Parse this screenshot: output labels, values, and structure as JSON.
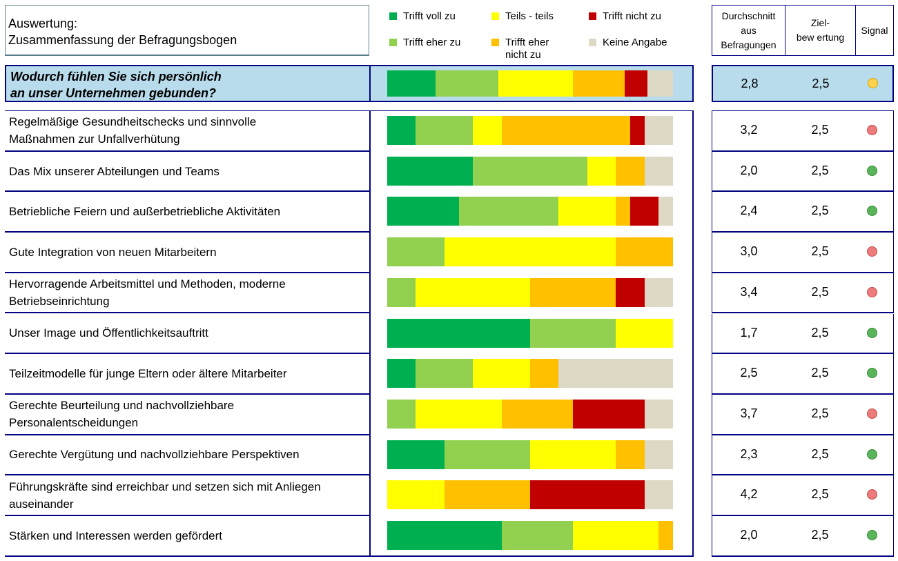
{
  "title": {
    "line1": "Auswertung:",
    "line2": "Zusammenfassung der Befragungsbogen"
  },
  "legend": [
    {
      "label": "Trifft voll zu",
      "color": "#00b050"
    },
    {
      "label": "Teils - teils",
      "color": "#ffff00"
    },
    {
      "label": "Trifft nicht zu",
      "color": "#c00000"
    },
    {
      "label": "Trifft eher zu",
      "color": "#92d050"
    },
    {
      "label": "Trifft eher\nnicht zu",
      "color": "#ffc000"
    },
    {
      "label": "Keine Angabe",
      "color": "#ddd9c4"
    }
  ],
  "columns": {
    "avg": "Durchschnitt aus Befragungen",
    "target": "Ziel-\nbew ertung",
    "signal": "Signal"
  },
  "question": {
    "line1": "Wodurch fühlen Sie sich persönlich",
    "line2": "an unser Unternehmen gebunden?",
    "avg": "2,8",
    "target": "2,5",
    "signal": "yellow"
  },
  "signal_colors": {
    "green": "#5ab55a",
    "red": "#ee7b7b",
    "yellow": "#ffd34d"
  },
  "chart_data": {
    "type": "bar",
    "stacked": true,
    "orientation": "horizontal",
    "unit": "percent",
    "series_order": [
      "Trifft voll zu",
      "Trifft eher zu",
      "Teils - teils",
      "Trifft eher nicht zu",
      "Trifft nicht zu",
      "Keine Angabe"
    ],
    "series_colors": [
      "#00b050",
      "#92d050",
      "#ffff00",
      "#ffc000",
      "#c00000",
      "#ddd9c4"
    ],
    "total": [
      17,
      22,
      26,
      18,
      8,
      9
    ],
    "categories": [
      "Regelmäßige Gesundheitschecks und sinnvolle\nMaßnahmen zur Unfallverhütung",
      "Das Mix unserer Abteilungen und Teams",
      "Betriebliche Feiern und außerbetriebliche Aktivitäten",
      "Gute Integration von neuen Mitarbeitern",
      "Hervorragende Arbeitsmittel und Methoden, moderne\nBetriebseinrichtung",
      "Unser Image und Öffentlichkeitsauftritt",
      "Teilzeitmodelle für junge Eltern oder ältere Mitarbeiter",
      "Gerechte Beurteilung und nachvollziehbare\nPersonalentscheidungen",
      "Gerechte Vergütung und nachvollziehbare Perspektiven",
      "Führungskräfte sind erreichbar und setzen sich mit Anliegen\nauseinander",
      "Stärken und Interessen werden gefördert"
    ],
    "values": [
      [
        10,
        20,
        10,
        45,
        5,
        10
      ],
      [
        30,
        40,
        10,
        10,
        0,
        10
      ],
      [
        25,
        35,
        20,
        5,
        10,
        5
      ],
      [
        0,
        20,
        60,
        20,
        0,
        0
      ],
      [
        0,
        10,
        40,
        30,
        10,
        10
      ],
      [
        50,
        30,
        20,
        0,
        0,
        0
      ],
      [
        10,
        20,
        20,
        10,
        0,
        40
      ],
      [
        0,
        10,
        30,
        25,
        25,
        10
      ],
      [
        20,
        30,
        30,
        10,
        0,
        10
      ],
      [
        0,
        0,
        20,
        30,
        40,
        10
      ],
      [
        40,
        25,
        30,
        5,
        0,
        0
      ]
    ],
    "avg": [
      "3,2",
      "2,0",
      "2,4",
      "3,0",
      "3,4",
      "1,7",
      "2,5",
      "3,7",
      "2,3",
      "4,2",
      "2,0"
    ],
    "target": [
      "2,5",
      "2,5",
      "2,5",
      "2,5",
      "2,5",
      "2,5",
      "2,5",
      "2,5",
      "2,5",
      "2,5",
      "2,5"
    ],
    "signal": [
      "red",
      "green",
      "green",
      "red",
      "red",
      "green",
      "green",
      "red",
      "green",
      "red",
      "green"
    ]
  }
}
